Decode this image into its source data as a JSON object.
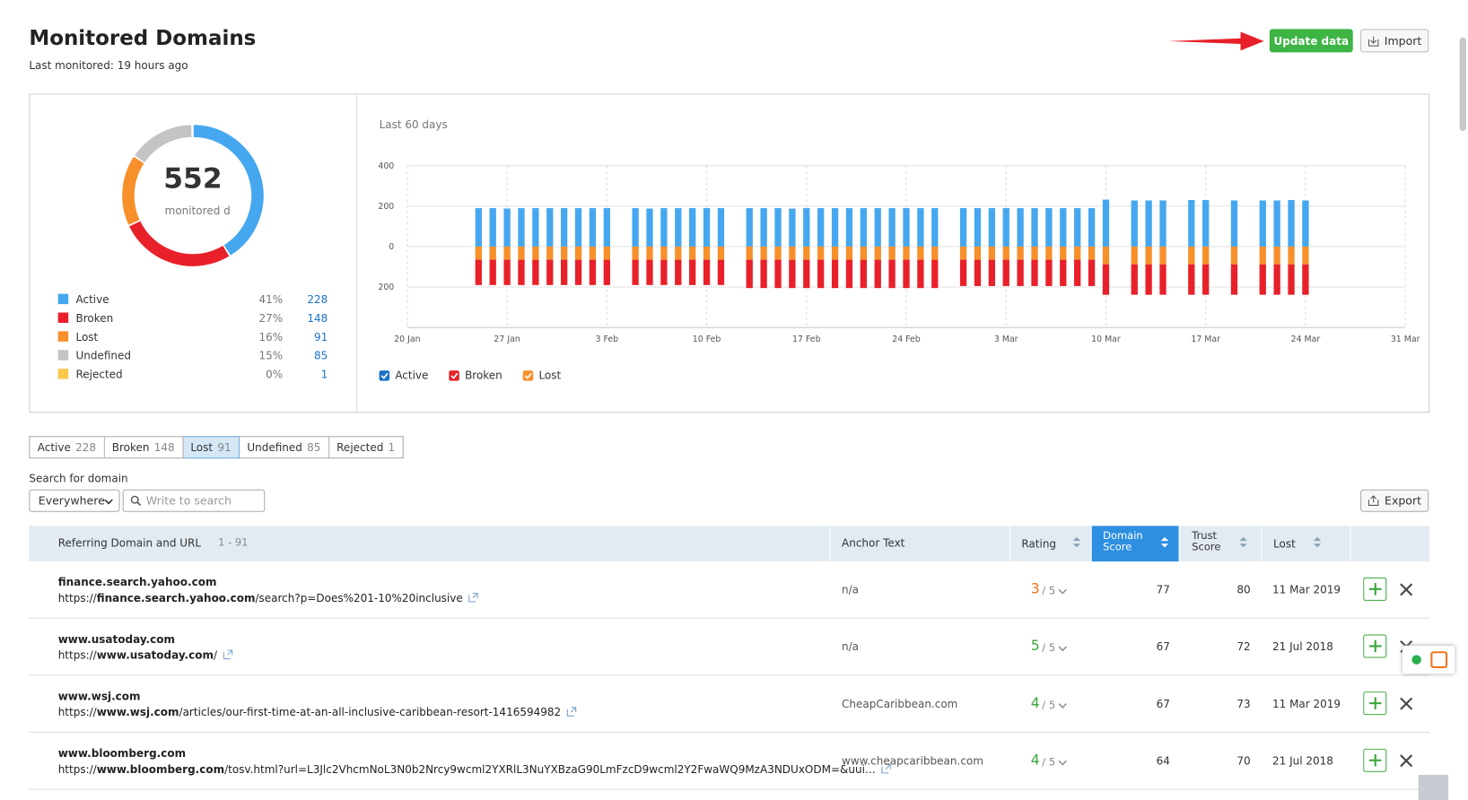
{
  "header": {
    "title": "Monitored Domains",
    "subtitle": "Last monitored: 19 hours ago",
    "update_button": "Update data",
    "import_button": "Import"
  },
  "chart_data": [
    {
      "type": "donut",
      "total": 552,
      "caption": "monitored domains",
      "categories": [
        "Active",
        "Broken",
        "Lost",
        "Undefined",
        "Rejected"
      ],
      "values": [
        228,
        148,
        91,
        85,
        1
      ],
      "shares": [
        "41%",
        "27%",
        "16%",
        "15%",
        "0%"
      ],
      "colors": [
        "#45a7ef",
        "#e8202a",
        "#f7902b",
        "#c4c4c4",
        "#f9c74a"
      ]
    },
    {
      "type": "stacked-bar",
      "subtitle": "Last 60 days",
      "x": [
        "25 Jan",
        "26 Jan",
        "27 Jan",
        "28 Jan",
        "29 Jan",
        "30 Jan",
        "31 Jan",
        "1 Feb",
        "2 Feb",
        "3 Feb",
        "5 Feb",
        "6 Feb",
        "7 Feb",
        "8 Feb",
        "9 Feb",
        "10 Feb",
        "11 Feb",
        "13 Feb",
        "14 Feb",
        "15 Feb",
        "16 Feb",
        "17 Feb",
        "18 Feb",
        "19 Feb",
        "20 Feb",
        "21 Feb",
        "22 Feb",
        "23 Feb",
        "24 Feb",
        "25 Feb",
        "26 Feb",
        "28 Feb",
        "1 Mar",
        "2 Mar",
        "3 Mar",
        "4 Mar",
        "5 Mar",
        "6 Mar",
        "7 Mar",
        "8 Mar",
        "9 Mar",
        "10 Mar",
        "12 Mar",
        "13 Mar",
        "14 Mar",
        "16 Mar",
        "17 Mar",
        "19 Mar",
        "21 Mar",
        "22 Mar",
        "23 Mar",
        "24 Mar"
      ],
      "series": [
        {
          "name": "Active",
          "color": "#45a7ef",
          "values": [
            190,
            190,
            188,
            190,
            190,
            190,
            190,
            190,
            190,
            190,
            190,
            188,
            190,
            190,
            190,
            190,
            190,
            190,
            190,
            190,
            188,
            190,
            190,
            190,
            190,
            190,
            190,
            190,
            190,
            190,
            190,
            190,
            190,
            190,
            190,
            190,
            190,
            190,
            190,
            190,
            190,
            232,
            228,
            228,
            228,
            230,
            230,
            228,
            228,
            228,
            230,
            228
          ]
        },
        {
          "name": "Lost",
          "color": "#f7902b",
          "values": [
            -65,
            -65,
            -65,
            -65,
            -65,
            -65,
            -65,
            -65,
            -65,
            -65,
            -65,
            -65,
            -65,
            -65,
            -65,
            -65,
            -65,
            -65,
            -65,
            -65,
            -65,
            -65,
            -65,
            -65,
            -65,
            -65,
            -65,
            -65,
            -65,
            -65,
            -65,
            -65,
            -65,
            -65,
            -65,
            -65,
            -65,
            -65,
            -65,
            -65,
            -65,
            -88,
            -88,
            -88,
            -88,
            -88,
            -88,
            -88,
            -88,
            -88,
            -88,
            -88
          ]
        },
        {
          "name": "Broken",
          "color": "#e8202a",
          "values": [
            -125,
            -125,
            -125,
            -125,
            -125,
            -125,
            -125,
            -125,
            -125,
            -125,
            -125,
            -125,
            -125,
            -125,
            -125,
            -125,
            -125,
            -140,
            -140,
            -140,
            -140,
            -140,
            -140,
            -140,
            -140,
            -140,
            -140,
            -140,
            -140,
            -140,
            -140,
            -130,
            -130,
            -130,
            -130,
            -130,
            -130,
            -130,
            -130,
            -130,
            -130,
            -150,
            -150,
            -150,
            -150,
            -150,
            -150,
            -150,
            -150,
            -150,
            -150,
            -150
          ]
        }
      ],
      "legend_order": [
        "Active",
        "Broken",
        "Lost"
      ],
      "xlim": [
        "20 Jan",
        "31 Mar"
      ],
      "xticks": [
        "20 Jan",
        "27 Jan",
        "3 Feb",
        "10 Feb",
        "17 Feb",
        "24 Feb",
        "3 Mar",
        "10 Mar",
        "17 Mar",
        "24 Mar",
        "31 Mar"
      ],
      "ylim": [
        -400,
        400
      ],
      "yticks": [
        400,
        200,
        0,
        {
          "value": -200,
          "label": "200"
        }
      ],
      "grid": true
    }
  ],
  "tabs": {
    "selected": 2,
    "items": [
      {
        "name": "Active",
        "count": "228"
      },
      {
        "name": "Broken",
        "count": "148"
      },
      {
        "name": "Lost",
        "count": "91"
      },
      {
        "name": "Undefined",
        "count": "85"
      },
      {
        "name": "Rejected",
        "count": "1"
      }
    ]
  },
  "search": {
    "label": "Search for domain",
    "scope": "Everywhere",
    "placeholder": "Write to search",
    "export_button": "Export"
  },
  "table": {
    "headers": {
      "domain": "Referring Domain and URL",
      "range": "1 - 91",
      "anchor": "Anchor Text",
      "rating": "Rating",
      "domain_score": "Domain Score",
      "trust_score": "Trust Score",
      "lost": "Lost"
    },
    "rating_suffix": "/ 5",
    "rows": [
      {
        "domain": "finance.search.yahoo.com",
        "scheme": "https://",
        "host": "finance.search.yahoo.com",
        "path": "/search?p=Does%201-10%20inclusive",
        "anchor": "n/a",
        "rating": "3",
        "rating_color": "#f0741f",
        "domain_score": "77",
        "trust_score": "80",
        "lost": "11 Mar 2019"
      },
      {
        "domain": "www.usatoday.com",
        "scheme": "https://",
        "host": "www.usatoday.com",
        "path": "/",
        "anchor": "n/a",
        "rating": "5",
        "rating_color": "#3aa63a",
        "domain_score": "67",
        "trust_score": "72",
        "lost": "21 Jul 2018"
      },
      {
        "domain": "www.wsj.com",
        "scheme": "https://",
        "host": "www.wsj.com",
        "path": "/articles/our-first-time-at-an-all-inclusive-caribbean-resort-1416594982",
        "anchor": "CheapCaribbean.com",
        "rating": "4",
        "rating_color": "#3aa63a",
        "domain_score": "67",
        "trust_score": "73",
        "lost": "11 Mar 2019"
      },
      {
        "domain": "www.bloomberg.com",
        "scheme": "https://",
        "host": "www.bloomberg.com",
        "path": "/tosv.html?url=L3Jlc2VhcmNoL3N0b2Nrcy9wcml2YXRlL3NuYXBzaG90LmFzcD9wcml2Y2FwaWQ9MzA3NDUxODM=&uui…",
        "anchor": "www.cheapcaribbean.com",
        "rating": "4",
        "rating_color": "#3aa63a",
        "domain_score": "64",
        "trust_score": "70",
        "lost": "21 Jul 2018"
      }
    ]
  }
}
